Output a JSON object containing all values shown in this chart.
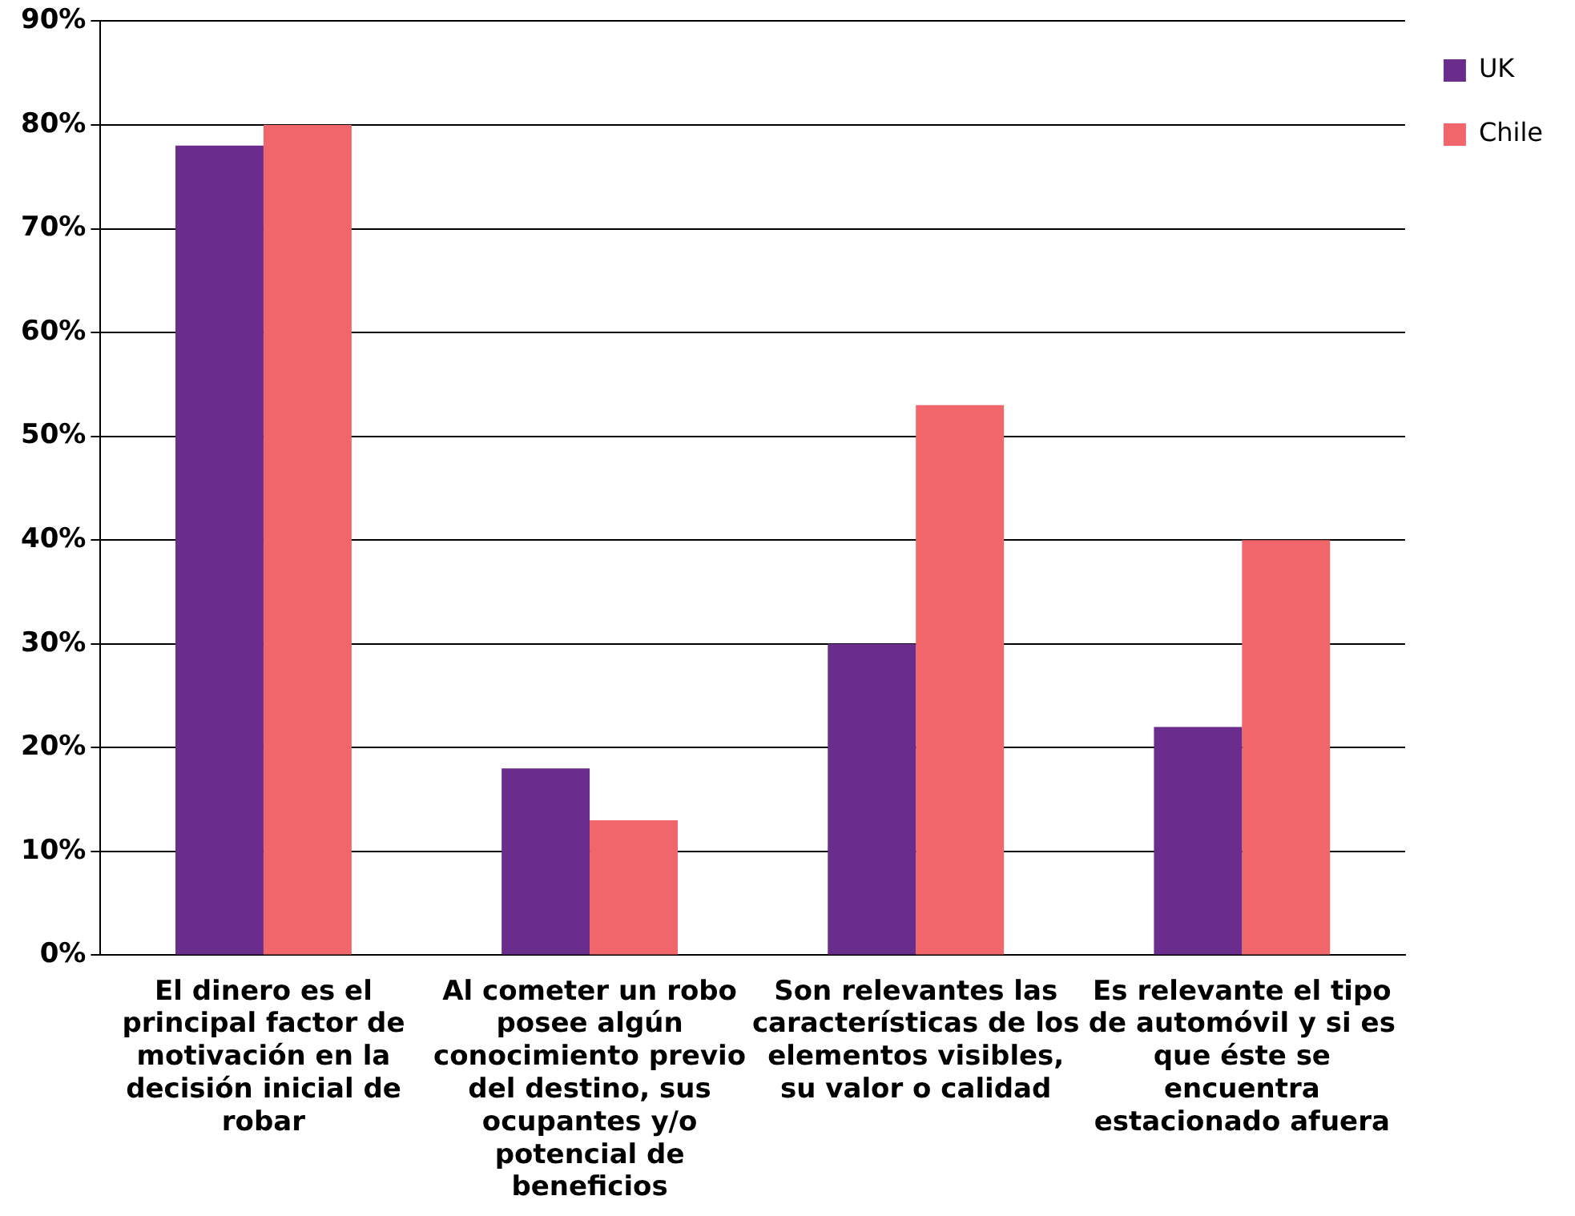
{
  "chart_data": {
    "type": "bar",
    "categories": [
      "El dinero es el principal factor de motivación en la decisión inicial de robar",
      "Al cometer un robo posee algún conocimiento previo del destino, sus ocupantes y/o potencial de beneficios",
      "Son relevantes las características de los elementos visibles, su valor o calidad",
      "Es relevante el tipo de automóvil y si es que éste se encuentra estacionado afuera"
    ],
    "series": [
      {
        "name": "UK",
        "color": "#6a2d8c",
        "values": [
          78,
          18,
          30,
          22
        ]
      },
      {
        "name": "Chile",
        "color": "#f0666a",
        "values": [
          80,
          13,
          53,
          40
        ]
      }
    ],
    "ylim": [
      0,
      90
    ],
    "yticks": [
      {
        "value": 0,
        "label": "0%"
      },
      {
        "value": 10,
        "label": "10%"
      },
      {
        "value": 20,
        "label": "20%"
      },
      {
        "value": 30,
        "label": "30%"
      },
      {
        "value": 40,
        "label": "40%"
      },
      {
        "value": 50,
        "label": "50%"
      },
      {
        "value": 60,
        "label": "60%"
      },
      {
        "value": 70,
        "label": "70%"
      },
      {
        "value": 80,
        "label": "80%"
      },
      {
        "value": 90,
        "label": "90%"
      }
    ],
    "grid": "y",
    "legend": "top right"
  }
}
